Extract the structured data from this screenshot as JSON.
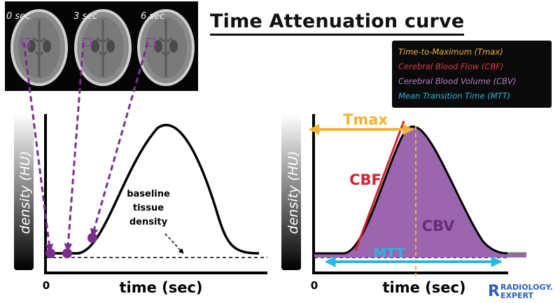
{
  "title": "Time Attenuation curve",
  "scans": {
    "labels": [
      "0 sec",
      "3 sec",
      "6 sec"
    ]
  },
  "legend": {
    "tmax": {
      "text": "Time-to-Maximum (Tmax)",
      "color": "#f2b233"
    },
    "cbf": {
      "text": "Cerebral Blood Flow (CBF)",
      "color": "#e03a45"
    },
    "cbv": {
      "text": "Cerebral Blood Volume (CBV)",
      "color": "#b57fc8"
    },
    "mtt": {
      "text": "Mean Transition Time (MTT)",
      "color": "#29b7e3"
    }
  },
  "left_graph": {
    "y_label": "density (HU)",
    "x_label": "time (sec)",
    "origin_label": "0",
    "annotation": [
      "baseline",
      "tissue",
      "density"
    ]
  },
  "right_graph": {
    "y_label": "density (HU)",
    "x_label": "time (sec)",
    "origin_label": "0",
    "tmax_label": "Tmax",
    "cbf_label": "CBF",
    "cbv_label": "CBV",
    "mtt_label": "MTT"
  },
  "colors": {
    "marker": "#7b2d8e",
    "area": "#9b66ad",
    "cbf_line": "#d2232f"
  },
  "logo": {
    "line1": "RADIOLOGY.",
    "line2": "EXPERT"
  }
}
